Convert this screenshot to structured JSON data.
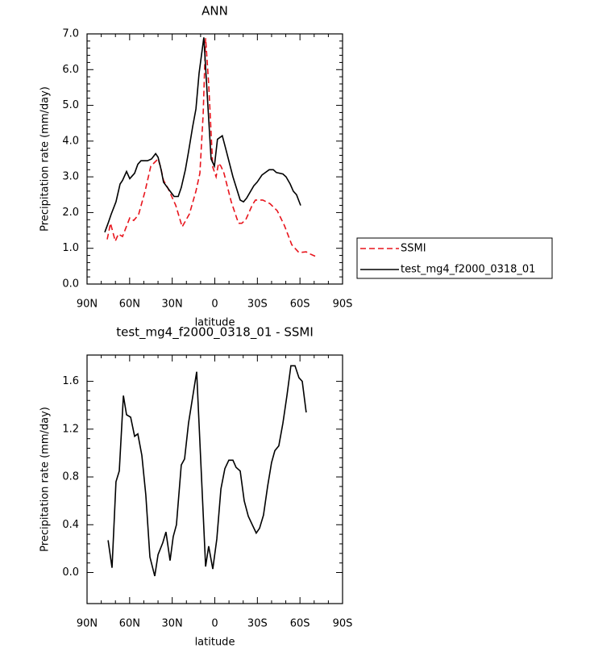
{
  "chart_data": [
    {
      "type": "line",
      "title": "ANN",
      "xlabel": "latitude",
      "ylabel": "Precipitation rate (mm/day)",
      "xlim": [
        90,
        -90
      ],
      "xticks": [
        {
          "value": 90,
          "label": "90N"
        },
        {
          "value": 60,
          "label": "60N"
        },
        {
          "value": 30,
          "label": "30N"
        },
        0,
        {
          "value": -30,
          "label": "30S"
        },
        {
          "value": -60,
          "label": "60S"
        },
        {
          "value": -90,
          "label": "90S"
        }
      ],
      "ylim": [
        0,
        7
      ],
      "yticks": [
        {
          "value": 0,
          "label": "0.0"
        },
        {
          "value": 1,
          "label": "1.0"
        },
        {
          "value": 2,
          "label": "2.0"
        },
        {
          "value": 3,
          "label": "3.0"
        },
        {
          "value": 4,
          "label": "4.0"
        },
        {
          "value": 5,
          "label": "5.0"
        },
        {
          "value": 6,
          "label": "6.0"
        },
        {
          "value": 7,
          "label": "7.0"
        }
      ],
      "legend": "right",
      "series": [
        {
          "name": "SSMI",
          "color": "#e8141c",
          "dashed": true,
          "x": [
            75.8,
            73.5,
            70.1,
            67.9,
            65.0,
            59.9,
            57.1,
            53.7,
            49.1,
            45.1,
            40.0,
            38.3,
            36.1,
            33.2,
            27.5,
            23.0,
            17.9,
            13.3,
            10.5,
            8.2,
            6.5,
            4.3,
            1.4,
            -0.9,
            -2.6,
            -4.3,
            -6.5,
            -11.6,
            -16.7,
            -19.0,
            -21.8,
            -26.4,
            -28.6,
            -33.8,
            -38.9,
            -44.0,
            -49.1,
            -54.2,
            -59.3,
            -64.4,
            -66.7,
            -71.2
          ],
          "values": [
            1.25,
            1.7,
            1.2,
            1.4,
            1.33,
            1.85,
            1.78,
            1.94,
            2.6,
            3.3,
            3.5,
            3.3,
            2.9,
            2.7,
            2.2,
            1.6,
            1.96,
            2.6,
            3.1,
            4.77,
            6.88,
            5.6,
            3.27,
            3.0,
            3.38,
            3.3,
            3.1,
            2.3,
            1.7,
            1.7,
            1.8,
            2.21,
            2.35,
            2.35,
            2.25,
            2.05,
            1.63,
            1.1,
            0.88,
            0.9,
            0.85,
            0.77
          ]
        },
        {
          "name": "test_mg4_f2000_0318_01",
          "color": "#000000",
          "dashed": false,
          "x": [
            77.5,
            75.2,
            73.0,
            69.6,
            66.7,
            65.0,
            62.2,
            59.9,
            56.5,
            54.2,
            52.0,
            47.4,
            44.6,
            41.7,
            40.0,
            37.8,
            36.1,
            31.5,
            28.7,
            25.8,
            23.6,
            20.7,
            18.5,
            15.6,
            13.3,
            11.1,
            7.7,
            4.9,
            2.6,
            0.3,
            -1.9,
            -5.3,
            -7.6,
            -12.8,
            -17.9,
            -20.2,
            -22.4,
            -27.5,
            -29.8,
            -33.2,
            -38.3,
            -41.2,
            -43.4,
            -48.0,
            -50.2,
            -53.1,
            -55.3,
            -57.6,
            -60.5
          ],
          "values": [
            1.45,
            1.7,
            1.95,
            2.3,
            2.8,
            2.9,
            3.15,
            2.95,
            3.1,
            3.35,
            3.45,
            3.45,
            3.5,
            3.65,
            3.55,
            3.2,
            2.85,
            2.6,
            2.45,
            2.45,
            2.7,
            3.2,
            3.7,
            4.4,
            4.9,
            5.9,
            6.9,
            5.0,
            3.5,
            3.3,
            4.05,
            4.15,
            3.8,
            3.0,
            2.35,
            2.3,
            2.4,
            2.75,
            2.85,
            3.05,
            3.2,
            3.2,
            3.12,
            3.08,
            3.0,
            2.8,
            2.6,
            2.5,
            2.2
          ]
        }
      ]
    },
    {
      "type": "line",
      "title": "test_mg4_f2000_0318_01 - SSMI",
      "xlabel": "latitude",
      "ylabel": "Precipitation rate (mm/day)",
      "xlim": [
        90,
        -90
      ],
      "xticks": [
        {
          "value": 90,
          "label": "90N"
        },
        {
          "value": 60,
          "label": "60N"
        },
        {
          "value": 30,
          "label": "30N"
        },
        0,
        {
          "value": -30,
          "label": "30S"
        },
        {
          "value": -60,
          "label": "60S"
        },
        {
          "value": -90,
          "label": "90S"
        }
      ],
      "ylim": [
        -0.26,
        1.82
      ],
      "yticks": [
        {
          "value": 0,
          "label": "0.0"
        },
        0.4,
        0.8,
        1.2,
        1.6
      ],
      "series": [
        {
          "color": "#000000",
          "dashed": false,
          "x": [
            75.2,
            72.4,
            69.6,
            67.3,
            64.4,
            62.2,
            59.3,
            56.5,
            54.2,
            51.4,
            48.6,
            45.7,
            42.3,
            40.0,
            36.6,
            34.4,
            31.5,
            29.3,
            27.0,
            23.6,
            21.3,
            18.5,
            12.8,
            6.5,
            4.3,
            1.4,
            -1.4,
            -4.3,
            -7.1,
            -9.9,
            -12.8,
            -15.0,
            -17.9,
            -20.7,
            -23.6,
            -26.4,
            -29.2,
            -31.5,
            -34.3,
            -37.2,
            -40.0,
            -42.3,
            -45.1,
            -48.0,
            -50.8,
            -53.6,
            -56.5,
            -59.3,
            -61.6,
            -64.4
          ],
          "values": [
            0.27,
            0.04,
            0.76,
            0.85,
            1.48,
            1.32,
            1.3,
            1.14,
            1.16,
            0.98,
            0.65,
            0.13,
            -0.03,
            0.15,
            0.25,
            0.34,
            0.1,
            0.3,
            0.4,
            0.9,
            0.95,
            1.25,
            1.68,
            0.05,
            0.22,
            0.03,
            0.28,
            0.7,
            0.87,
            0.94,
            0.94,
            0.88,
            0.85,
            0.6,
            0.47,
            0.4,
            0.33,
            0.37,
            0.48,
            0.72,
            0.92,
            1.02,
            1.06,
            1.25,
            1.48,
            1.73,
            1.73,
            1.63,
            1.6,
            1.34
          ]
        }
      ]
    }
  ]
}
